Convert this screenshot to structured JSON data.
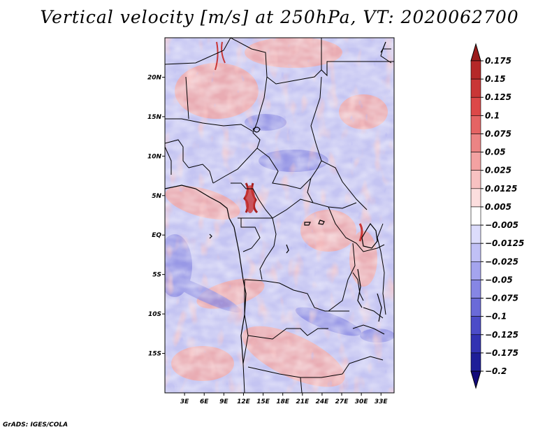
{
  "title": "Vertical velocity [m/s] at 250hPa, VT: 2020062700",
  "credit": "GrADS: IGES/COLA",
  "chart_data": {
    "type": "heatmap",
    "variable": "Vertical velocity",
    "units": "m/s",
    "level": "250hPa",
    "valid_time": "2020062700",
    "lon_range": [
      0,
      35
    ],
    "lat_range": [
      -20,
      25
    ],
    "x_ticks": [
      {
        "value": 3,
        "label": "3E"
      },
      {
        "value": 6,
        "label": "6E"
      },
      {
        "value": 9,
        "label": "9E"
      },
      {
        "value": 12,
        "label": "12E"
      },
      {
        "value": 15,
        "label": "15E"
      },
      {
        "value": 18,
        "label": "18E"
      },
      {
        "value": 21,
        "label": "21E"
      },
      {
        "value": 24,
        "label": "24E"
      },
      {
        "value": 27,
        "label": "27E"
      },
      {
        "value": 30,
        "label": "30E"
      },
      {
        "value": 33,
        "label": "33E"
      }
    ],
    "y_ticks": [
      {
        "value": 20,
        "label": "20N"
      },
      {
        "value": 15,
        "label": "15N"
      },
      {
        "value": 10,
        "label": "10N"
      },
      {
        "value": 5,
        "label": "5N"
      },
      {
        "value": 0,
        "label": "EQ"
      },
      {
        "value": -5,
        "label": "5S"
      },
      {
        "value": -10,
        "label": "10S"
      },
      {
        "value": -15,
        "label": "15S"
      }
    ],
    "colorbar": {
      "levels": [
        "0.175",
        "0.15",
        "0.125",
        "0.1",
        "0.075",
        "0.05",
        "0.025",
        "0.0125",
        "0.005",
        "-0.005",
        "-0.0125",
        "-0.025",
        "-0.05",
        "-0.075",
        "-0.1",
        "-0.125",
        "-0.175",
        "-0.2"
      ],
      "colors": [
        "#9b1b1b",
        "#b52828",
        "#c93636",
        "#dc4848",
        "#e56464",
        "#ec8484",
        "#f3a2a2",
        "#f8c2c2",
        "#fcdede",
        "#ffffff",
        "#dcdcfc",
        "#c0c0f6",
        "#a4a4ee",
        "#8686e4",
        "#6a6ad8",
        "#4c4cc8",
        "#3232b2",
        "#1e1e98",
        "#120a7a"
      ]
    },
    "features": [
      {
        "description": "strong ascent band",
        "lon": 12.5,
        "lat": 5,
        "value": 0.15
      },
      {
        "description": "subsidence streak",
        "lon": 4,
        "lat": -8,
        "value": -0.1
      }
    ]
  }
}
